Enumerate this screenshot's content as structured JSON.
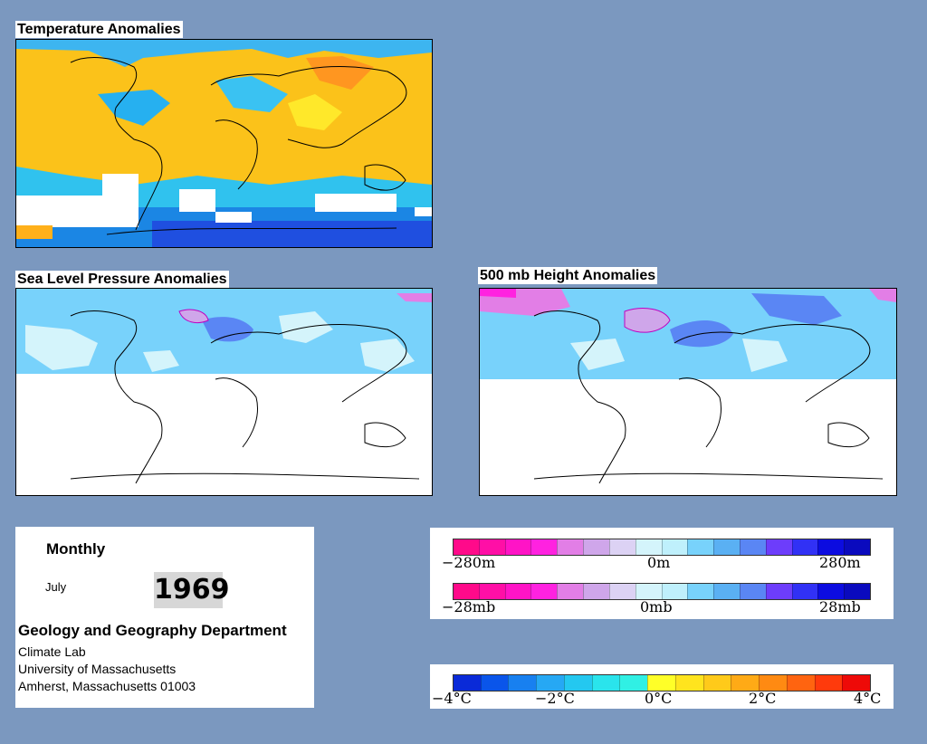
{
  "maps": {
    "temperature": {
      "title": "Temperature Anomalies"
    },
    "slp": {
      "title": "Sea Level Pressure Anomalies"
    },
    "height500": {
      "title": "500 mb Height Anomalies"
    }
  },
  "info": {
    "period": "Monthly",
    "month": "July",
    "year": "1969",
    "department": "Geology and Geography Department",
    "lab": "Climate Lab",
    "university": "University of Massachusetts",
    "address": "Amherst, Massachusetts 01003"
  },
  "legends": {
    "height": {
      "min": "−280m",
      "mid": "0m",
      "max": "280m"
    },
    "pressure": {
      "min": "−28mb",
      "mid": "0mb",
      "max": "28mb"
    },
    "temperature": {
      "t1": "−4°C",
      "t2": "−2°C",
      "t3": "0°C",
      "t4": "2°C",
      "t5": "4°C"
    }
  },
  "colors": {
    "background": "#7b98bf",
    "anomaly_pos_height": [
      "#ff0a8a",
      "#ff0fa6",
      "#ff14c6",
      "#ff22e0",
      "#e27ee6",
      "#cfa6ea",
      "#dcd2f4",
      "#d4f4fb",
      "#bff0fc",
      "#78d2fb",
      "#5ab0f3",
      "#5a86f4",
      "#6d3dfb",
      "#3131f5",
      "#0c0ce0",
      "#0a0abe"
    ],
    "temp_scale": [
      "#0a2ad8",
      "#0a55ea",
      "#1880f0",
      "#26a8f4",
      "#24c8f0",
      "#2ae4ec",
      "#30f0e4",
      "#ffff28",
      "#ffe41e",
      "#ffca1a",
      "#ffaa16",
      "#ff8a12",
      "#ff6410",
      "#ff3a0c",
      "#ee0a08"
    ]
  }
}
